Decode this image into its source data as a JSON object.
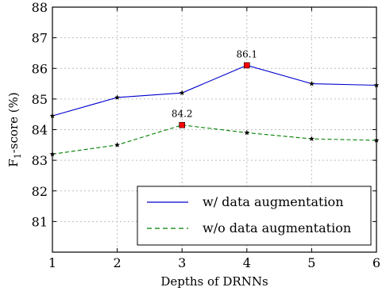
{
  "chart_data": {
    "type": "line",
    "xlabel": "Depths of DRNNs",
    "ylabel": "F",
    "ylabel_sub": "1",
    "ylabel_suffix": "-score (%)",
    "xlim": [
      1,
      6
    ],
    "ylim": [
      80,
      88
    ],
    "x_ticks": [
      1,
      2,
      3,
      4,
      5,
      6
    ],
    "y_ticks": [
      81,
      82,
      83,
      84,
      85,
      86,
      87,
      88
    ],
    "grid": true,
    "legend_position": "bottom-right",
    "x": [
      1,
      2,
      3,
      4,
      5,
      6
    ],
    "series": [
      {
        "name": "w/ data augmentation",
        "values": [
          84.45,
          85.05,
          85.2,
          86.1,
          85.5,
          85.45
        ],
        "color": "#0000cc",
        "line_style": "solid",
        "highlight_index": 3,
        "highlight_label": "86.1"
      },
      {
        "name": "w/o data augmentation",
        "values": [
          83.2,
          83.5,
          84.15,
          83.9,
          83.7,
          83.65
        ],
        "color": "#008000",
        "line_style": "dashed",
        "highlight_index": 2,
        "highlight_label": "84.2"
      }
    ],
    "highlight_color": "#ff0000",
    "marker_color": "#000000"
  }
}
